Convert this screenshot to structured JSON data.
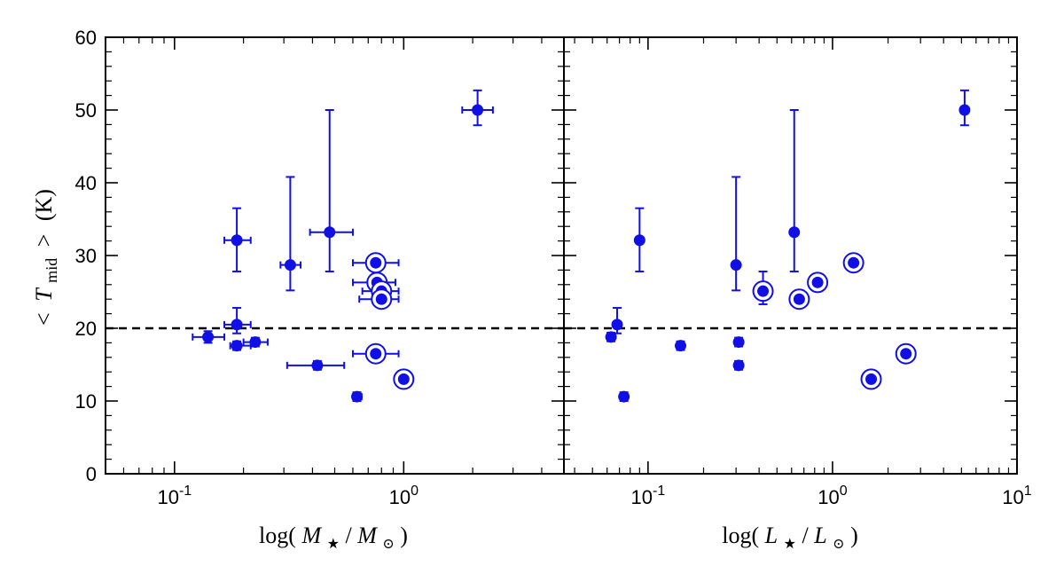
{
  "colors": {
    "marker": "#1010e6",
    "axis": "#000000",
    "threshold_line": "#000000"
  },
  "chart_data": [
    {
      "type": "scatter",
      "panel": "left",
      "xscale": "log",
      "xlim": [
        0.05,
        5.0
      ],
      "ylim": [
        0,
        60
      ],
      "xlabel_text": "log(M★/M⊙)",
      "xlabel": {
        "prefix": "log(",
        "var1": "M",
        "sub1": "★",
        "slash": "/",
        "var2": "M",
        "sub2": "⊙",
        "suffix": ")"
      },
      "ylabel_text": "<Tmid> (K)",
      "ylabel": {
        "lt": "<",
        "var": "T",
        "sub": "mid",
        "gt": ">",
        "unit": "(K)"
      },
      "xticks": [
        {
          "value": 0.1,
          "base": "10",
          "exp": "-1"
        },
        {
          "value": 1,
          "base": "10",
          "exp": "0"
        }
      ],
      "yticks": [
        0,
        10,
        20,
        30,
        40,
        50,
        60
      ],
      "threshold": {
        "y": 20,
        "style": "dashed"
      },
      "points": [
        {
          "x": 0.14,
          "y": 18.8,
          "xerr": [
            0.12,
            0.165
          ],
          "yerr": [
            18.0,
            19.6
          ],
          "circled": false
        },
        {
          "x": 0.187,
          "y": 32.1,
          "xerr": [
            0.165,
            0.215
          ],
          "yerr": [
            27.8,
            36.5
          ],
          "circled": false
        },
        {
          "x": 0.187,
          "y": 20.5,
          "xerr": [
            0.165,
            0.215
          ],
          "yerr": [
            19.3,
            22.8
          ],
          "circled": false
        },
        {
          "x": 0.187,
          "y": 17.6,
          "xerr": [
            0.175,
            0.215
          ],
          "yerr": [
            17.0,
            18.2
          ],
          "circled": false
        },
        {
          "x": 0.225,
          "y": 18.1,
          "xerr": [
            0.2,
            0.255
          ],
          "yerr": [
            17.5,
            18.7
          ],
          "circled": false
        },
        {
          "x": 0.32,
          "y": 28.7,
          "xerr": [
            0.29,
            0.355
          ],
          "yerr": [
            25.2,
            40.8
          ],
          "circled": false
        },
        {
          "x": 0.42,
          "y": 14.9,
          "xerr": [
            0.31,
            0.55
          ],
          "yerr": [
            14.3,
            15.5
          ],
          "circled": false
        },
        {
          "x": 0.475,
          "y": 33.2,
          "xerr": [
            0.39,
            0.6
          ],
          "yerr": [
            27.8,
            50.0
          ],
          "circled": false
        },
        {
          "x": 0.625,
          "y": 10.6,
          "xerr": [
            0.6,
            0.655
          ],
          "yerr": [
            10.0,
            11.2
          ],
          "circled": false
        },
        {
          "x": 0.755,
          "y": 16.5,
          "xerr": [
            0.6,
            0.95
          ],
          "yerr": [
            15.9,
            17.1
          ],
          "circled": true
        },
        {
          "x": 0.755,
          "y": 29.0,
          "xerr": [
            0.6,
            0.95
          ],
          "yerr": [
            28.4,
            29.6
          ],
          "circled": true
        },
        {
          "x": 0.765,
          "y": 26.3,
          "xerr": [
            0.6,
            0.92
          ],
          "yerr": [
            25.7,
            26.9
          ],
          "circled": true
        },
        {
          "x": 0.8,
          "y": 25.1,
          "xerr": [
            0.66,
            0.95
          ],
          "yerr": [
            24.5,
            25.7
          ],
          "circled": true
        },
        {
          "x": 0.8,
          "y": 24.0,
          "xerr": [
            0.64,
            0.95
          ],
          "yerr": [
            23.4,
            24.6
          ],
          "circled": true
        },
        {
          "x": 1.0,
          "y": 13.0,
          "xerr": [
            0.97,
            1.03
          ],
          "yerr": [
            12.4,
            13.6
          ],
          "circled": true
        },
        {
          "x": 2.1,
          "y": 50.0,
          "xerr": [
            1.8,
            2.45
          ],
          "yerr": [
            47.9,
            52.7
          ],
          "circled": false
        }
      ]
    },
    {
      "type": "scatter",
      "panel": "right",
      "xscale": "log",
      "xlim": [
        0.035,
        10.0
      ],
      "ylim": [
        0,
        60
      ],
      "xlabel_text": "log(L★/L⊙)",
      "xlabel": {
        "prefix": "log(",
        "var1": "L",
        "sub1": "★",
        "slash": "/",
        "var2": "L",
        "sub2": "⊙",
        "suffix": ")"
      },
      "xticks": [
        {
          "value": 0.1,
          "base": "10",
          "exp": "-1"
        },
        {
          "value": 1,
          "base": "10",
          "exp": "0"
        },
        {
          "value": 10,
          "base": "10",
          "exp": "1"
        }
      ],
      "yticks": [
        0,
        10,
        20,
        30,
        40,
        50,
        60
      ],
      "threshold": {
        "y": 20,
        "style": "dashed"
      },
      "points": [
        {
          "x": 0.063,
          "y": 18.8,
          "yerr": [
            18.2,
            19.4
          ],
          "circled": false
        },
        {
          "x": 0.068,
          "y": 20.5,
          "yerr": [
            19.3,
            22.8
          ],
          "circled": false
        },
        {
          "x": 0.074,
          "y": 10.6,
          "yerr": [
            10.0,
            11.2
          ],
          "circled": false
        },
        {
          "x": 0.09,
          "y": 32.1,
          "yerr": [
            27.8,
            36.5
          ],
          "circled": false
        },
        {
          "x": 0.15,
          "y": 17.6,
          "yerr": [
            17.0,
            18.2
          ],
          "circled": false
        },
        {
          "x": 0.3,
          "y": 28.7,
          "yerr": [
            25.2,
            40.8
          ],
          "circled": false
        },
        {
          "x": 0.31,
          "y": 18.1,
          "yerr": [
            17.5,
            18.7
          ],
          "circled": false
        },
        {
          "x": 0.31,
          "y": 14.9,
          "yerr": [
            14.3,
            15.5
          ],
          "circled": false
        },
        {
          "x": 0.42,
          "y": 25.1,
          "yerr": [
            23.3,
            27.8
          ],
          "circled": true
        },
        {
          "x": 0.62,
          "y": 33.2,
          "yerr": [
            27.8,
            50.0
          ],
          "circled": false
        },
        {
          "x": 0.66,
          "y": 24.0,
          "yerr": [
            23.4,
            24.6
          ],
          "circled": true
        },
        {
          "x": 0.83,
          "y": 26.3,
          "yerr": [
            25.7,
            26.9
          ],
          "circled": true
        },
        {
          "x": 1.3,
          "y": 29.0,
          "yerr": [
            28.4,
            29.6
          ],
          "circled": true
        },
        {
          "x": 1.62,
          "y": 13.0,
          "yerr": [
            12.4,
            13.6
          ],
          "circled": true
        },
        {
          "x": 2.5,
          "y": 16.5,
          "yerr": [
            15.9,
            17.1
          ],
          "circled": true
        },
        {
          "x": 5.2,
          "y": 50.0,
          "yerr": [
            47.9,
            52.7
          ],
          "circled": false
        }
      ]
    }
  ]
}
